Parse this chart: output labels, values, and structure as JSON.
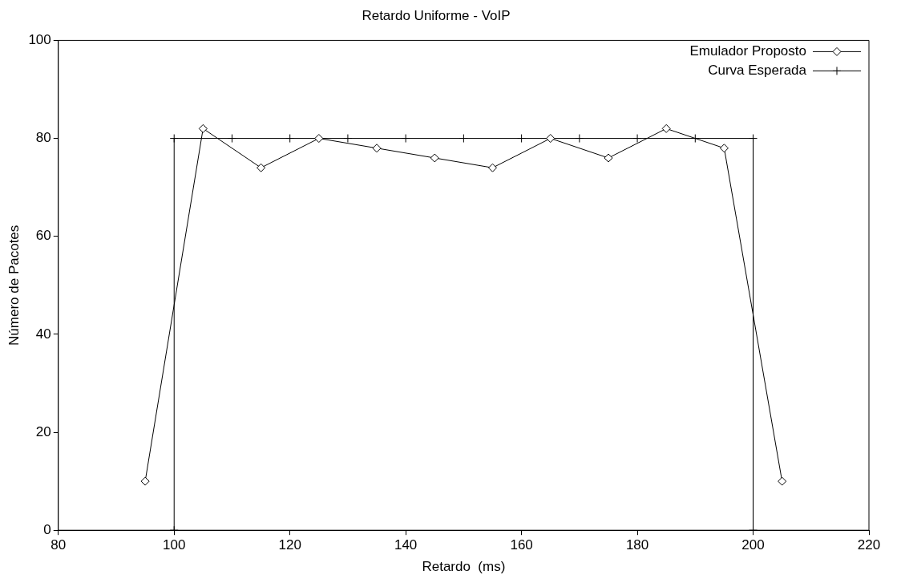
{
  "chart_data": {
    "type": "line",
    "title": "Retardo Uniforme - VoIP",
    "xlabel": "Retardo  (ms)",
    "ylabel": "Número de Pacotes",
    "xlim": [
      80,
      220
    ],
    "xticks": [
      80,
      100,
      120,
      140,
      160,
      180,
      200,
      220
    ],
    "ylim": [
      0,
      100
    ],
    "yticks": [
      0,
      20,
      40,
      60,
      80,
      100
    ],
    "grid": false,
    "legend": "top right",
    "line_style": "solid",
    "series": [
      {
        "name": "Emulador Proposto",
        "color": "#000000",
        "marker": "diamond",
        "x": [
          95,
          105,
          115,
          125,
          135,
          145,
          155,
          165,
          175,
          185,
          195,
          205
        ],
        "values": [
          10,
          82,
          74,
          80,
          78,
          76,
          74,
          80,
          76,
          82,
          78,
          10
        ]
      },
      {
        "name": "Curva Esperada",
        "color": "#000000",
        "marker": "cross",
        "x": [
          100,
          100,
          110,
          120,
          130,
          140,
          150,
          160,
          170,
          180,
          190,
          200,
          200
        ],
        "values": [
          0,
          80,
          80,
          80,
          80,
          80,
          80,
          80,
          80,
          80,
          80,
          80,
          0
        ]
      }
    ]
  }
}
